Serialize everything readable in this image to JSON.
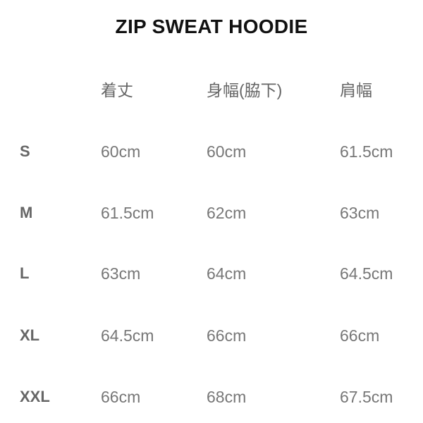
{
  "title": "ZIP SWEAT HOODIE",
  "headers": [
    "着丈",
    "身幅(脇下)",
    "肩幅"
  ],
  "rows": [
    {
      "size": "S",
      "values": [
        "60cm",
        "60cm",
        "61.5cm"
      ]
    },
    {
      "size": "M",
      "values": [
        "61.5cm",
        "62cm",
        "63cm"
      ]
    },
    {
      "size": "L",
      "values": [
        "63cm",
        "64cm",
        "64.5cm"
      ]
    },
    {
      "size": "XL",
      "values": [
        "64.5cm",
        "66cm",
        "66cm"
      ]
    },
    {
      "size": "XXL",
      "values": [
        "66cm",
        "68cm",
        "67.5cm"
      ]
    }
  ]
}
